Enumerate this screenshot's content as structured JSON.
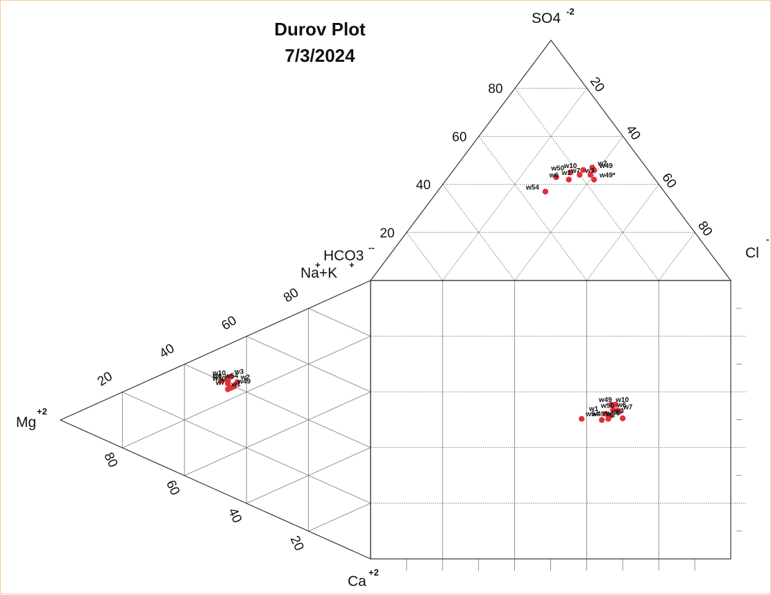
{
  "chart_data": {
    "type": "scatter",
    "subtype": "durov",
    "title": "Durov Plot",
    "subtitle": "7/3/2024",
    "ions": {
      "anion_top": {
        "label": "SO4",
        "charge": "-2"
      },
      "anion_right": {
        "label": "Cl",
        "charge": "-"
      },
      "anion_base": {
        "label": "HCO3",
        "charge": "--"
      },
      "cation_top": {
        "label": "Na+K",
        "charge": "+",
        "charge2": "+"
      },
      "cation_left": {
        "label": "Mg",
        "charge": "+2"
      },
      "cation_bottom": {
        "label": "Ca",
        "charge": "+2"
      }
    },
    "ticks": {
      "anion_so4": [
        "20",
        "40",
        "60",
        "80"
      ],
      "anion_cl": [
        "20",
        "40",
        "60",
        "80"
      ],
      "cation_nak": [
        "20",
        "40",
        "60",
        "80"
      ],
      "cation_ca": [
        "80",
        "60",
        "40",
        "20"
      ]
    },
    "marker_color": "#e0303a",
    "anion_points": [
      {
        "label": "w2",
        "so4": 47,
        "cl": 38
      },
      {
        "label": "w10",
        "so4": 46,
        "cl": 36
      },
      {
        "label": "w49",
        "so4": 46,
        "cl": 39
      },
      {
        "label": "w50",
        "so4": 45,
        "cl": 33
      },
      {
        "label": "w3",
        "so4": 44,
        "cl": 36
      },
      {
        "label": "w7",
        "so4": 44,
        "cl": 39
      },
      {
        "label": "w1",
        "so4": 43,
        "cl": 30
      },
      {
        "label": "w6",
        "so4": 42,
        "cl": 34
      },
      {
        "label": "w49*",
        "so4": 42,
        "cl": 41
      },
      {
        "label": "w54",
        "so4": 37,
        "cl": 30
      }
    ],
    "cation_points": [
      {
        "label": "w3",
        "nak": 43,
        "mg": 45
      },
      {
        "label": "w10",
        "nak": 42,
        "mg": 46
      },
      {
        "label": "w2",
        "nak": 42,
        "mg": 43
      },
      {
        "label": "w6",
        "nak": 41,
        "mg": 46
      },
      {
        "label": "w54",
        "nak": 40,
        "mg": 48
      },
      {
        "label": "w50",
        "nak": 40,
        "mg": 46
      },
      {
        "label": "w49",
        "nak": 40,
        "mg": 44
      },
      {
        "label": "w7",
        "nak": 39,
        "mg": 45
      },
      {
        "label": "w1",
        "nak": 38,
        "mg": 46
      }
    ],
    "square_points": [
      {
        "label": "w10",
        "sx": 0.669,
        "sy": 0.446
      },
      {
        "label": "w49",
        "sx": 0.68,
        "sy": 0.446
      },
      {
        "label": "w6",
        "sx": 0.673,
        "sy": 0.465
      },
      {
        "label": "w50",
        "sx": 0.686,
        "sy": 0.467
      },
      {
        "label": "w7",
        "sx": 0.69,
        "sy": 0.472
      },
      {
        "label": "w1",
        "sx": 0.653,
        "sy": 0.479
      },
      {
        "label": "w3",
        "sx": 0.666,
        "sy": 0.486
      },
      {
        "label": "w54",
        "sx": 0.7,
        "sy": 0.495
      },
      {
        "label": "w2",
        "sx": 0.642,
        "sy": 0.501
      },
      {
        "label": "w49*",
        "sx": 0.66,
        "sy": 0.497
      },
      {
        "label": "w54",
        "sx": 0.586,
        "sy": 0.497
      }
    ]
  }
}
